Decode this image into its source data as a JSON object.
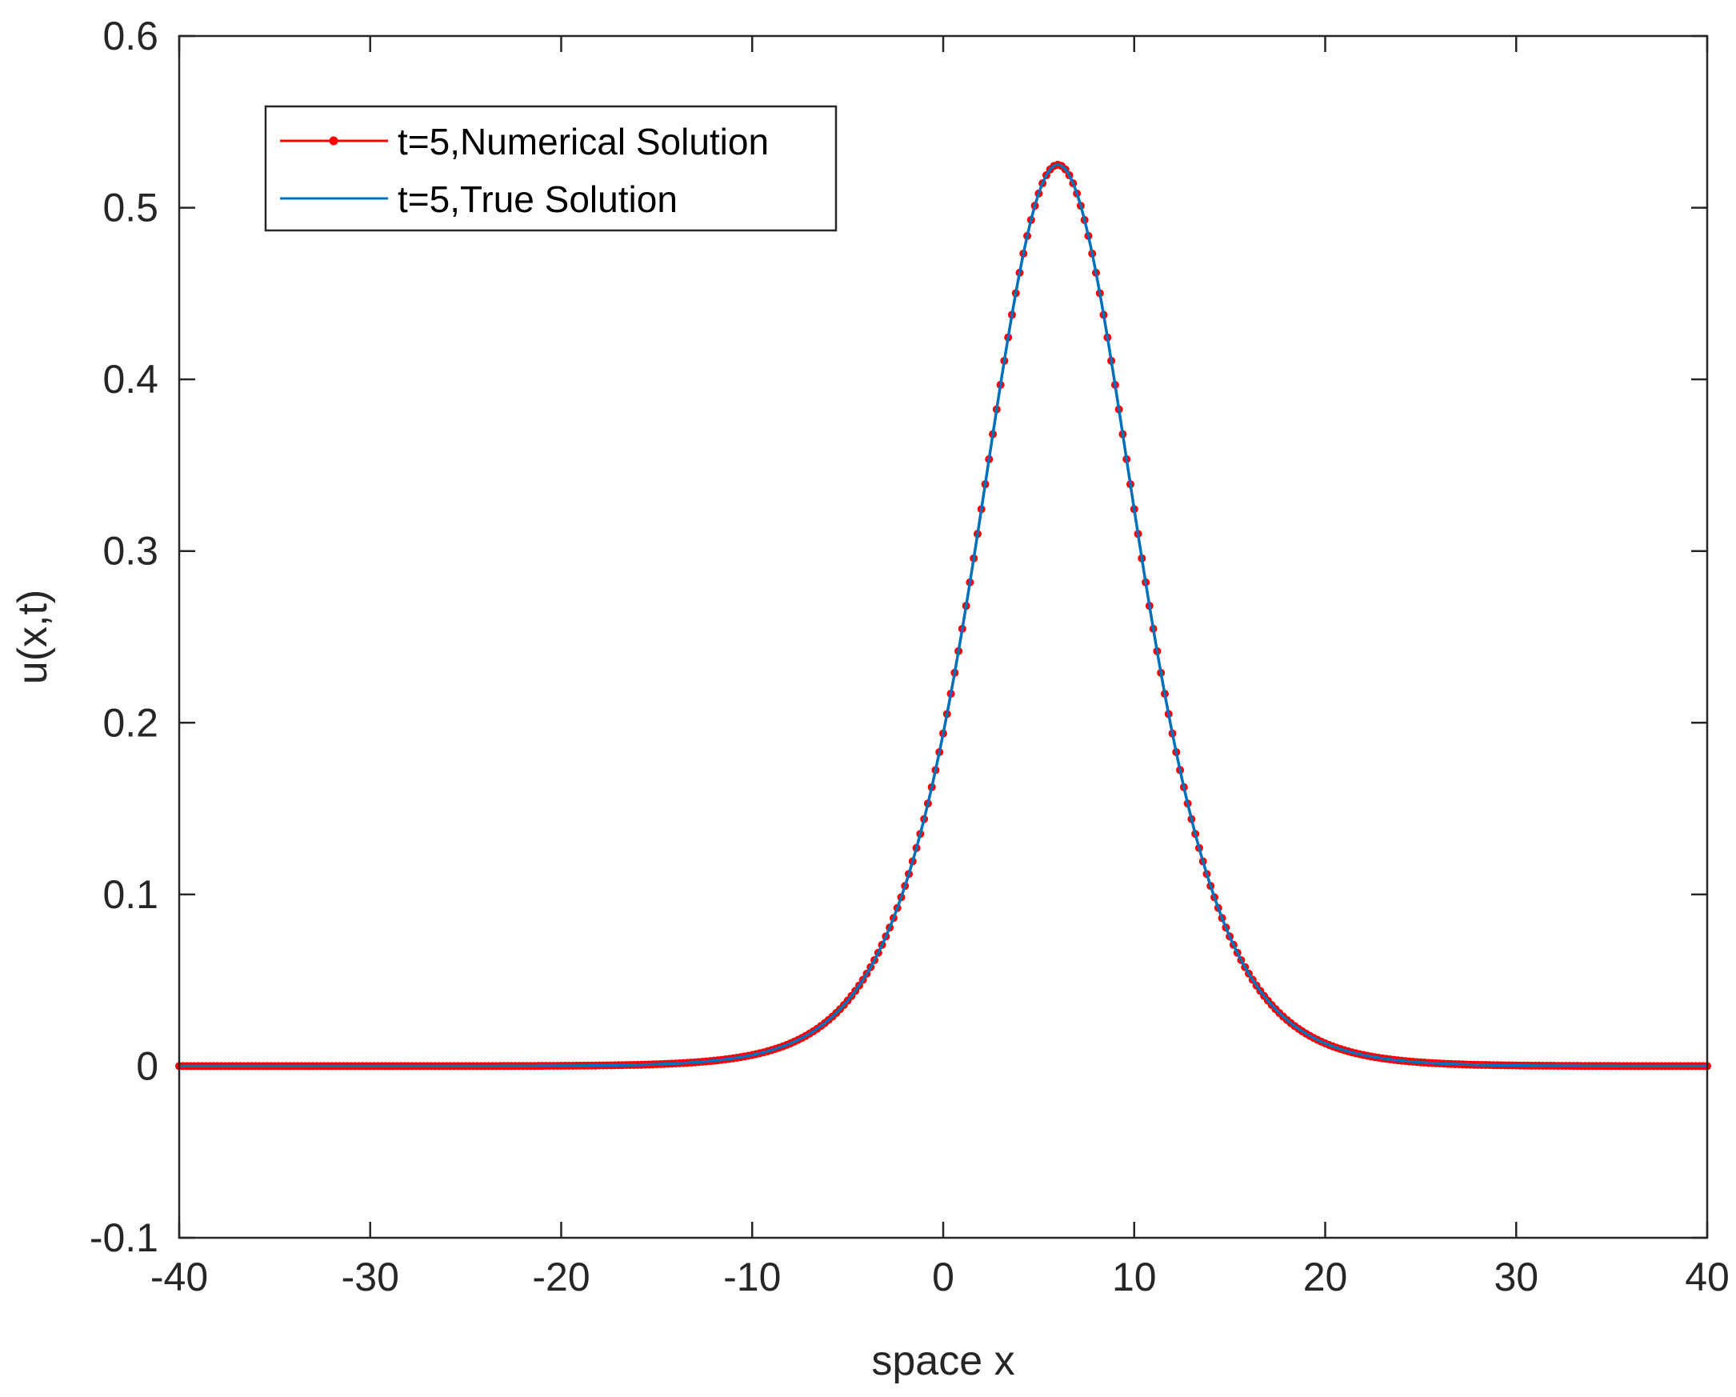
{
  "chart_data": {
    "type": "line",
    "xlabel": "space x",
    "ylabel": "u(x,t)",
    "xlim": [
      -40,
      40
    ],
    "ylim": [
      -0.1,
      0.6
    ],
    "xticks": [
      -40,
      -30,
      -20,
      -10,
      0,
      10,
      20,
      30,
      40
    ],
    "yticks": [
      -0.1,
      0,
      0.1,
      0.2,
      0.3,
      0.4,
      0.5,
      0.6
    ],
    "xtick_labels": [
      "-40",
      "-30",
      "-20",
      "-10",
      "0",
      "10",
      "20",
      "30",
      "40"
    ],
    "ytick_labels": [
      "-0.1",
      "0",
      "0.1",
      "0.2",
      "0.3",
      "0.4",
      "0.5",
      "0.6"
    ],
    "grid": false,
    "legend_position": "top-left",
    "series": [
      {
        "name": "t=5,Numerical Solution",
        "color": "#ff0000",
        "marker": "dot",
        "x_start": -40,
        "x_end": 40,
        "x_step": 0.2,
        "peak_x": 6,
        "peak_value": 0.525,
        "width_parameter": 5.54
      },
      {
        "name": "t=5,True Solution",
        "color": "#0072bd",
        "marker": "none",
        "x_start": -40,
        "x_end": 40,
        "x_step": 0.05,
        "peak_x": 6,
        "peak_value": 0.525,
        "width_parameter": 5.54
      }
    ]
  }
}
